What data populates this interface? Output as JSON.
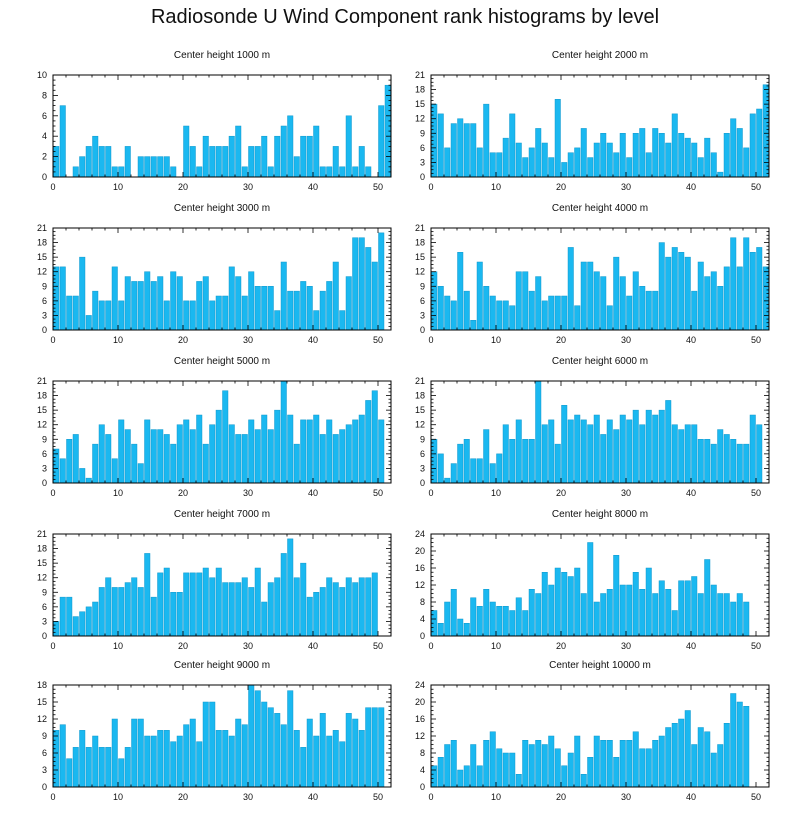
{
  "title": "Radiosonde U Wind Component rank histograms by level",
  "colors": {
    "bar": "#1ab8f0",
    "bar_stroke": "#0e97cc",
    "axis": "#000000"
  },
  "chart_data": [
    {
      "type": "bar",
      "title": "Center height 1000 m",
      "ylim": [
        0,
        10
      ],
      "yticks": [
        0,
        2,
        4,
        6,
        8,
        10
      ],
      "xlim": [
        0,
        52
      ],
      "xticks": [
        0,
        10,
        20,
        30,
        40,
        50
      ],
      "values": [
        3,
        7,
        0,
        1,
        2,
        3,
        4,
        3,
        3,
        1,
        1,
        3,
        0,
        2,
        2,
        2,
        2,
        2,
        1,
        0,
        5,
        3,
        1,
        4,
        3,
        3,
        3,
        4,
        5,
        1,
        3,
        3,
        4,
        1,
        4,
        5,
        6,
        2,
        4,
        4,
        5,
        1,
        1,
        3,
        1,
        6,
        1,
        3,
        1,
        0,
        7,
        9
      ]
    },
    {
      "type": "bar",
      "title": "Center height 2000 m",
      "ylim": [
        0,
        21
      ],
      "yticks": [
        0,
        3,
        6,
        9,
        12,
        15,
        18,
        21
      ],
      "xlim": [
        0,
        52
      ],
      "xticks": [
        0,
        10,
        20,
        30,
        40,
        50
      ],
      "values": [
        15,
        13,
        6,
        11,
        12,
        11,
        11,
        6,
        15,
        5,
        5,
        8,
        13,
        7,
        4,
        6,
        10,
        7,
        4,
        16,
        3,
        5,
        6,
        10,
        4,
        7,
        9,
        7,
        5,
        9,
        4,
        9,
        10,
        5,
        10,
        9,
        7,
        13,
        9,
        8,
        7,
        4,
        8,
        5,
        1,
        9,
        12,
        10,
        6,
        13,
        14,
        19
      ]
    },
    {
      "type": "bar",
      "title": "Center height 3000 m",
      "ylim": [
        0,
        21
      ],
      "yticks": [
        0,
        3,
        6,
        9,
        12,
        15,
        18,
        21
      ],
      "xlim": [
        0,
        52
      ],
      "xticks": [
        0,
        10,
        20,
        30,
        40,
        50
      ],
      "values": [
        13,
        13,
        7,
        7,
        15,
        3,
        8,
        6,
        6,
        13,
        6,
        11,
        10,
        10,
        12,
        10,
        11,
        6,
        12,
        11,
        6,
        6,
        10,
        11,
        6,
        7,
        7,
        13,
        11,
        7,
        12,
        9,
        9,
        9,
        4,
        14,
        8,
        8,
        10,
        9,
        4,
        8,
        10,
        14,
        4,
        11,
        19,
        19,
        17,
        14,
        20
      ]
    },
    {
      "type": "bar",
      "title": "Center height 4000 m",
      "ylim": [
        0,
        21
      ],
      "yticks": [
        0,
        3,
        6,
        9,
        12,
        15,
        18,
        21
      ],
      "xlim": [
        0,
        52
      ],
      "xticks": [
        0,
        10,
        20,
        30,
        40,
        50
      ],
      "values": [
        12,
        9,
        7,
        6,
        16,
        8,
        2,
        14,
        9,
        7,
        6,
        6,
        5,
        12,
        12,
        8,
        11,
        6,
        7,
        7,
        7,
        17,
        5,
        14,
        14,
        12,
        11,
        5,
        15,
        11,
        7,
        12,
        9,
        8,
        8,
        18,
        15,
        17,
        16,
        15,
        8,
        14,
        11,
        12,
        9,
        13,
        19,
        13,
        19,
        16,
        17,
        13
      ]
    },
    {
      "type": "bar",
      "title": "Center height 5000 m",
      "ylim": [
        0,
        21
      ],
      "yticks": [
        0,
        3,
        6,
        9,
        12,
        15,
        18,
        21
      ],
      "xlim": [
        0,
        52
      ],
      "xticks": [
        0,
        10,
        20,
        30,
        40,
        50
      ],
      "values": [
        7,
        5,
        9,
        10,
        3,
        1,
        8,
        12,
        10,
        5,
        13,
        11,
        8,
        4,
        13,
        11,
        11,
        10,
        8,
        12,
        13,
        11,
        14,
        8,
        12,
        15,
        19,
        12,
        10,
        10,
        13,
        11,
        14,
        11,
        15,
        21,
        14,
        8,
        13,
        13,
        14,
        10,
        13,
        10,
        11,
        12,
        13,
        14,
        17,
        19,
        13
      ]
    },
    {
      "type": "bar",
      "title": "Center height 6000 m",
      "ylim": [
        0,
        21
      ],
      "yticks": [
        0,
        3,
        6,
        9,
        12,
        15,
        18,
        21
      ],
      "xlim": [
        0,
        52
      ],
      "xticks": [
        0,
        10,
        20,
        30,
        40,
        50
      ],
      "values": [
        9,
        6,
        1,
        4,
        8,
        9,
        5,
        5,
        11,
        4,
        6,
        12,
        9,
        13,
        9,
        9,
        21,
        12,
        13,
        8,
        16,
        13,
        14,
        13,
        12,
        14,
        10,
        13,
        11,
        14,
        13,
        15,
        12,
        15,
        14,
        15,
        17,
        12,
        11,
        12,
        12,
        9,
        9,
        8,
        11,
        10,
        9,
        8,
        8,
        14,
        12
      ]
    },
    {
      "type": "bar",
      "title": "Center height 7000 m",
      "ylim": [
        0,
        21
      ],
      "yticks": [
        0,
        3,
        6,
        9,
        12,
        15,
        18,
        21
      ],
      "xlim": [
        0,
        52
      ],
      "xticks": [
        0,
        10,
        20,
        30,
        40,
        50
      ],
      "values": [
        3,
        8,
        8,
        4,
        5,
        6,
        7,
        10,
        12,
        10,
        10,
        11,
        12,
        10,
        17,
        8,
        13,
        14,
        9,
        9,
        13,
        13,
        13,
        14,
        12,
        14,
        11,
        11,
        11,
        12,
        10,
        14,
        7,
        11,
        12,
        17,
        20,
        12,
        15,
        8,
        9,
        10,
        12,
        11,
        10,
        12,
        11,
        12,
        12,
        13
      ]
    },
    {
      "type": "bar",
      "title": "Center height 8000 m",
      "ylim": [
        0,
        24
      ],
      "yticks": [
        0,
        4,
        8,
        12,
        16,
        20,
        24
      ],
      "xlim": [
        0,
        52
      ],
      "xticks": [
        0,
        10,
        20,
        30,
        40,
        50
      ],
      "values": [
        6,
        3,
        8,
        11,
        4,
        3,
        9,
        7,
        11,
        8,
        7,
        7,
        6,
        9,
        6,
        11,
        10,
        15,
        12,
        16,
        15,
        14,
        16,
        10,
        22,
        8,
        10,
        11,
        19,
        12,
        12,
        15,
        11,
        16,
        10,
        13,
        11,
        6,
        13,
        13,
        14,
        10,
        18,
        12,
        10,
        10,
        8,
        10,
        8
      ]
    },
    {
      "type": "bar",
      "title": "Center height 9000 m",
      "ylim": [
        0,
        18
      ],
      "yticks": [
        0,
        3,
        6,
        9,
        12,
        15,
        18
      ],
      "xlim": [
        0,
        52
      ],
      "xticks": [
        0,
        10,
        20,
        30,
        40,
        50
      ],
      "values": [
        10,
        11,
        5,
        7,
        10,
        7,
        9,
        7,
        7,
        12,
        5,
        7,
        12,
        12,
        9,
        9,
        10,
        10,
        8,
        9,
        11,
        12,
        8,
        15,
        15,
        10,
        10,
        9,
        12,
        11,
        18,
        17,
        15,
        14,
        13,
        11,
        17,
        10,
        7,
        12,
        9,
        13,
        9,
        10,
        8,
        13,
        12,
        10,
        14,
        14,
        14
      ]
    },
    {
      "type": "bar",
      "title": "Center height 10000 m",
      "ylim": [
        0,
        24
      ],
      "yticks": [
        0,
        4,
        8,
        12,
        16,
        20,
        24
      ],
      "xlim": [
        0,
        52
      ],
      "xticks": [
        0,
        10,
        20,
        30,
        40,
        50
      ],
      "values": [
        5,
        7,
        10,
        11,
        4,
        5,
        10,
        5,
        11,
        13,
        9,
        8,
        8,
        3,
        11,
        10,
        11,
        10,
        12,
        9,
        5,
        8,
        12,
        3,
        7,
        12,
        11,
        11,
        7,
        11,
        11,
        13,
        9,
        9,
        11,
        12,
        14,
        15,
        16,
        18,
        10,
        14,
        13,
        8,
        10,
        15,
        22,
        20,
        19
      ]
    }
  ]
}
